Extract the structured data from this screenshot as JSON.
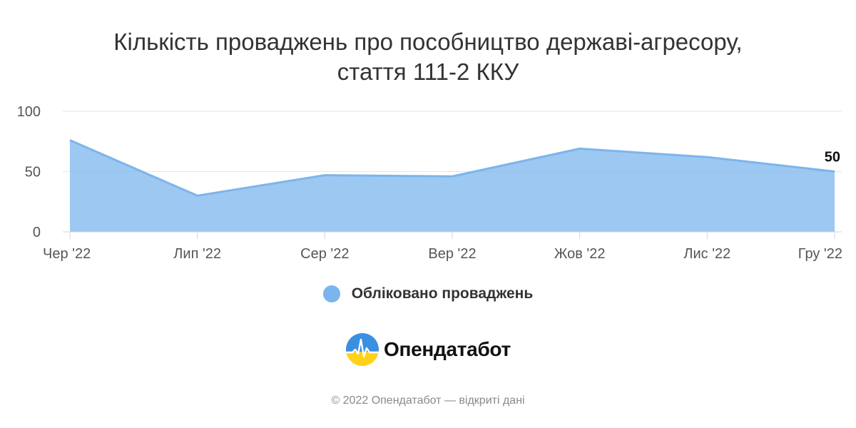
{
  "title": {
    "line1": "Кількість проваджень про пособництво державі-агресору,",
    "line2": "стаття 111-2 ККУ"
  },
  "chart_data": {
    "type": "area",
    "categories": [
      "Чер '22",
      "Лип '22",
      "Сер '22",
      "Вер '22",
      "Жов '22",
      "Лис '22",
      "Гру '22"
    ],
    "series": [
      {
        "name": "Обліковано проваджень",
        "values": [
          76,
          30,
          47,
          46,
          69,
          62,
          50
        ],
        "color": "#7cb5ec"
      }
    ],
    "ylim": [
      0,
      100
    ],
    "yticks": [
      0,
      50,
      100
    ],
    "grid": true,
    "data_labels": [
      {
        "index": 6,
        "text": "50"
      }
    ],
    "legend_position": "bottom-center"
  },
  "legend": {
    "label": "Обліковано проваджень"
  },
  "logo": {
    "text": "Опендатабот",
    "icon": "opendatabot-logo-icon"
  },
  "footer": {
    "text": "© 2022 Опендатабот — відкриті дані"
  },
  "colors": {
    "series": "#7cb5ec",
    "grid": "#e6e6e6",
    "text": "#333333"
  }
}
